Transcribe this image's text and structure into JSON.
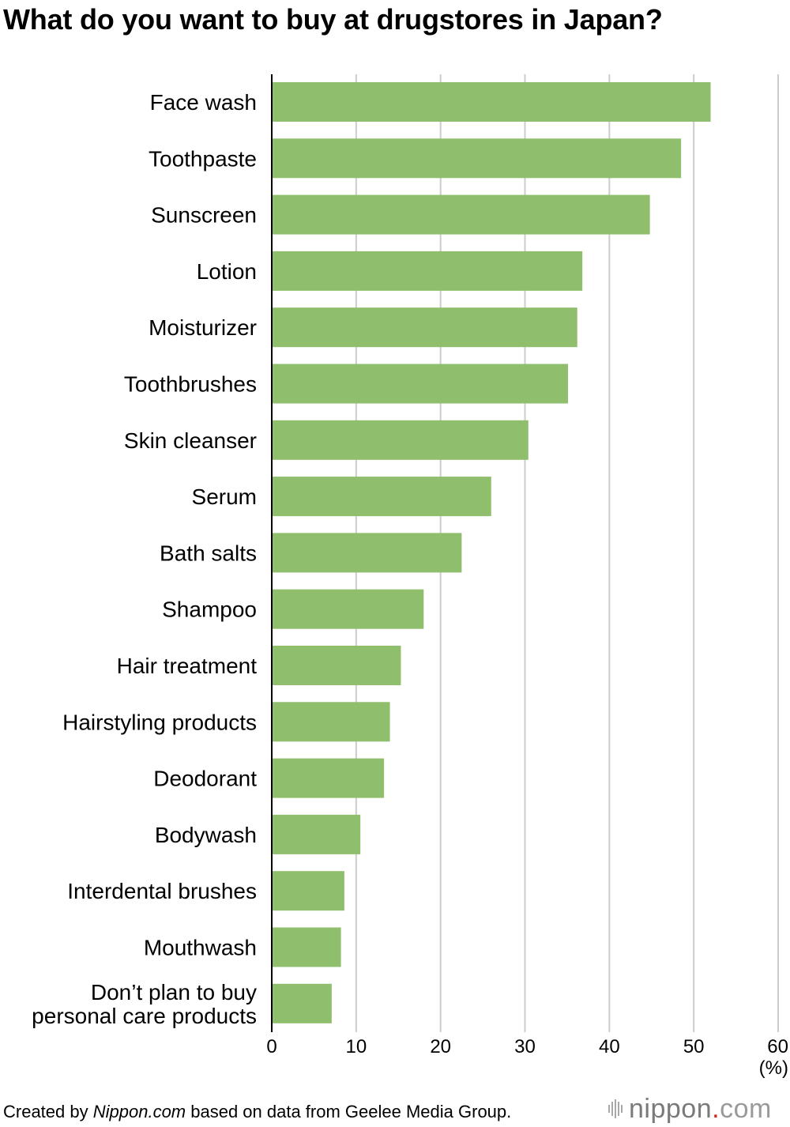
{
  "title": "What do you want to buy at drugstores in Japan?",
  "footer": {
    "prefix": "Created by ",
    "source_name": "Nippon.com",
    "suffix": " based on data from Geelee Media Group."
  },
  "logo": {
    "name": "nippon",
    "dot": ".",
    "tld": "com"
  },
  "colors": {
    "bar": "#8fbf6c",
    "grid": "#cccccc",
    "axis": "#000000"
  },
  "chart_data": {
    "type": "bar",
    "orientation": "horizontal",
    "title": "What do you want to buy at drugstores in Japan?",
    "xlabel": "(%)",
    "ylabel": "",
    "xlim": [
      0,
      60
    ],
    "xticks": [
      0,
      10,
      20,
      30,
      40,
      50,
      60
    ],
    "grid": true,
    "categories": [
      "Face wash",
      "Toothpaste",
      "Sunscreen",
      "Lotion",
      "Moisturizer",
      "Toothbrushes",
      "Skin cleanser",
      "Serum",
      "Bath salts",
      "Shampoo",
      "Hair treatment",
      "Hairstyling products",
      "Deodorant",
      "Bodywash",
      "Interdental brushes",
      "Mouthwash",
      "Don’t plan to buy\npersonal care products"
    ],
    "values": [
      52.0,
      48.5,
      44.8,
      36.8,
      36.2,
      35.1,
      30.4,
      26.0,
      22.5,
      18.0,
      15.3,
      14.0,
      13.3,
      10.5,
      8.6,
      8.2,
      7.1
    ]
  }
}
